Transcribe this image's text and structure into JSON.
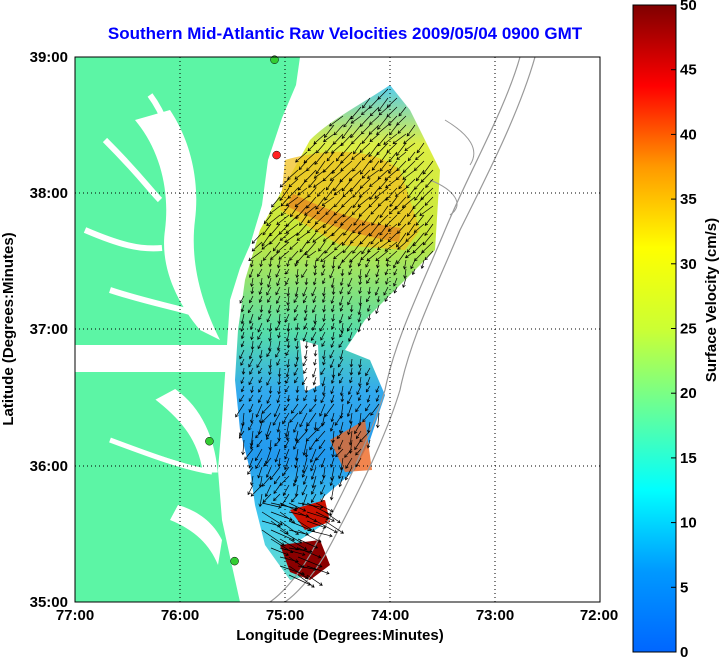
{
  "title": "Southern Mid-Atlantic Raw Velocities 2009/05/04 0900 GMT",
  "map": {
    "x_label": "Longitude (Degrees:Minutes)",
    "y_label": "Latitude (Degrees:Minutes)",
    "lon_range": [
      -77,
      -72
    ],
    "lat_range": [
      35,
      39
    ],
    "lon_ticks": [
      "77:00",
      "76:00",
      "75:00",
      "74:00",
      "73:00",
      "72:00"
    ],
    "lat_ticks": [
      "39:00",
      "38:00",
      "37:00",
      "36:00",
      "35:00"
    ],
    "land_color": "#5cf5a5",
    "water_color": "#ffffff",
    "isobath_color": "#999999"
  },
  "colorbar": {
    "label": "Surface Velocity (cm/s)",
    "range": [
      0,
      50
    ],
    "ticks": [
      "50",
      "45",
      "40",
      "35",
      "30",
      "25",
      "20",
      "15",
      "10",
      "5",
      "0"
    ]
  },
  "stations": [
    {
      "lon": -75.1,
      "lat": 38.98,
      "color": "#33cc33"
    },
    {
      "lon": -75.08,
      "lat": 38.28,
      "color": "#ff2222"
    },
    {
      "lon": -75.72,
      "lat": 36.18,
      "color": "#33cc33"
    },
    {
      "lon": -75.48,
      "lat": 35.3,
      "color": "#33cc33"
    }
  ]
}
